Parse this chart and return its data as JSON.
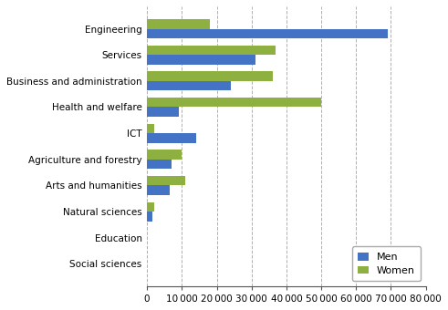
{
  "categories": [
    "Engineering",
    "Services",
    "Business and administration",
    "Health and welfare",
    "ICT",
    "Agriculture and forestry",
    "Arts and humanities",
    "Natural sciences",
    "Education",
    "Social sciences"
  ],
  "men": [
    69000,
    31000,
    24000,
    9000,
    14000,
    7000,
    6500,
    1500,
    0,
    0
  ],
  "women": [
    18000,
    37000,
    36000,
    50000,
    2000,
    10000,
    11000,
    2000,
    0,
    0
  ],
  "men_color": "#4472c4",
  "women_color": "#8db040",
  "xlim": [
    0,
    80000
  ],
  "xticks": [
    0,
    10000,
    20000,
    30000,
    40000,
    50000,
    60000,
    70000,
    80000
  ],
  "xtick_labels": [
    "0",
    "10 000",
    "20 000",
    "30 000",
    "40 000",
    "50 000",
    "60 000",
    "70 000",
    "80 000"
  ],
  "legend_labels": [
    "Men",
    "Women"
  ],
  "bar_height": 0.37,
  "grid_color": "#b0b0b0",
  "bg_color": "#ffffff"
}
